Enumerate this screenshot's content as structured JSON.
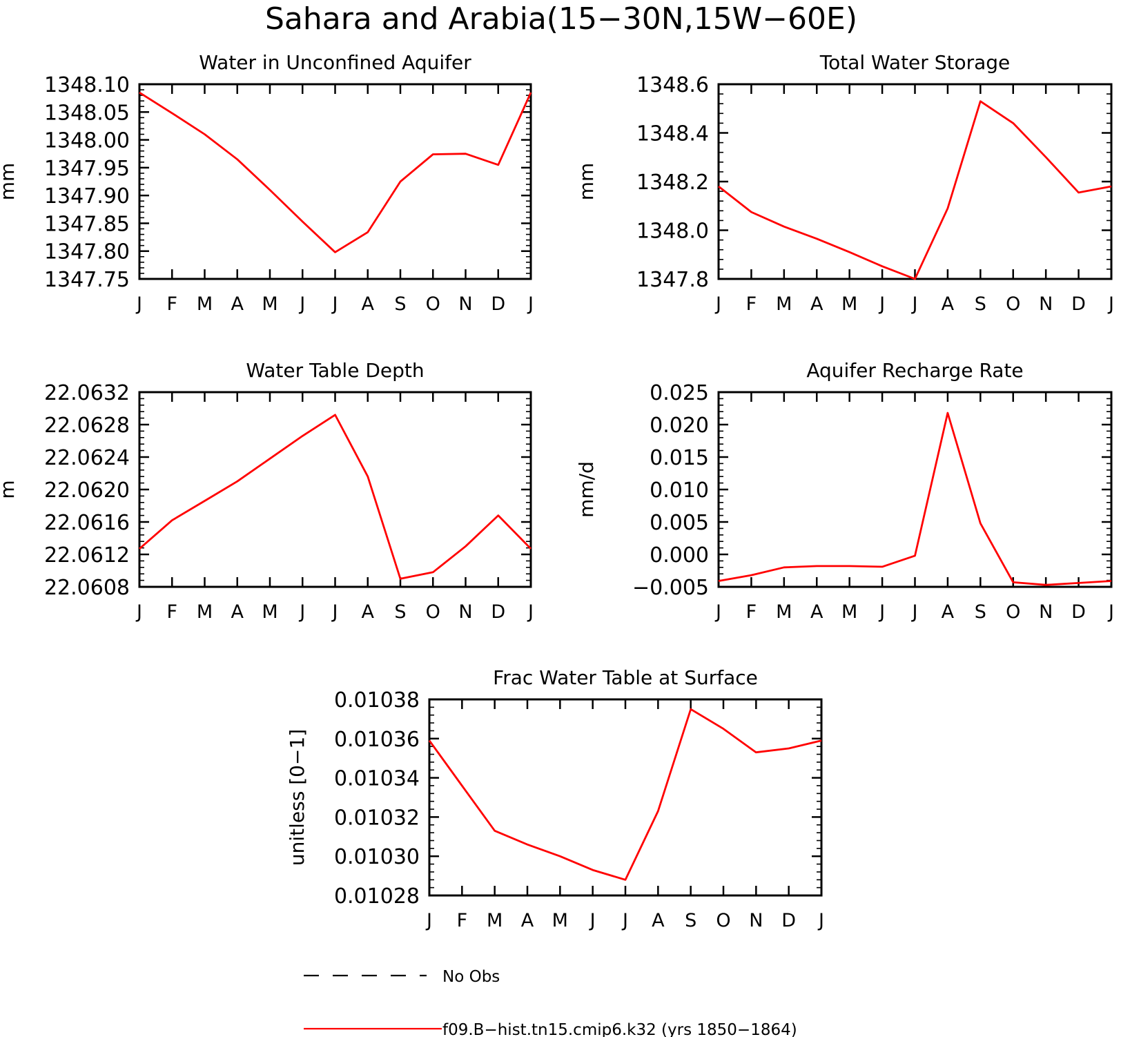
{
  "figure_title": "Sahara and Arabia(15−30N,15W−60E)",
  "legend": {
    "placement": "bottom-center",
    "entries": [
      {
        "label": "No Obs",
        "style": "dashed",
        "color": "#000000"
      },
      {
        "label": "f09.B−hist.tn15.cmip6.k32 (yrs 1850−1864)",
        "style": "solid",
        "color": "#ff0000"
      }
    ]
  },
  "chart_data": [
    {
      "type": "line",
      "title": "Water in Unconfined Aquifer",
      "ylabel": "mm",
      "x": [
        "J",
        "F",
        "M",
        "A",
        "M",
        "J",
        "J",
        "A",
        "S",
        "O",
        "N",
        "D",
        "J"
      ],
      "ylim": [
        1347.75,
        1348.1
      ],
      "yticks": [
        "1347.75",
        "1347.80",
        "1347.85",
        "1347.90",
        "1347.95",
        "1348.00",
        "1348.05",
        "1348.10"
      ],
      "series": [
        {
          "color": "#ff0000",
          "values": [
            1348.085,
            1348.048,
            1348.01,
            1347.965,
            1347.91,
            1347.853,
            1347.798,
            1347.834,
            1347.925,
            1347.974,
            1347.975,
            1347.955,
            1348.085
          ]
        }
      ]
    },
    {
      "type": "line",
      "title": "Total Water Storage",
      "ylabel": "mm",
      "x": [
        "J",
        "F",
        "M",
        "A",
        "M",
        "J",
        "J",
        "A",
        "S",
        "O",
        "N",
        "D",
        "J"
      ],
      "ylim": [
        1347.8,
        1348.6
      ],
      "yticks": [
        "1347.8",
        "1348.0",
        "1348.2",
        "1348.4",
        "1348.6"
      ],
      "series": [
        {
          "color": "#ff0000",
          "values": [
            1348.18,
            1348.075,
            1348.015,
            1347.965,
            1347.91,
            1347.852,
            1347.8,
            1348.09,
            1348.53,
            1348.44,
            1348.3,
            1348.155,
            1348.18
          ]
        }
      ]
    },
    {
      "type": "line",
      "title": "Water Table Depth",
      "ylabel": "m",
      "x": [
        "J",
        "F",
        "M",
        "A",
        "M",
        "J",
        "J",
        "A",
        "S",
        "O",
        "N",
        "D",
        "J"
      ],
      "ylim": [
        22.0608,
        22.0632
      ],
      "yticks": [
        "22.0608",
        "22.0612",
        "22.0616",
        "22.0620",
        "22.0624",
        "22.0628",
        "22.0632"
      ],
      "series": [
        {
          "color": "#ff0000",
          "values": [
            22.06127,
            22.06162,
            22.06186,
            22.0621,
            22.06238,
            22.06266,
            22.06292,
            22.06216,
            22.0609,
            22.06098,
            22.0613,
            22.06168,
            22.06127
          ]
        }
      ]
    },
    {
      "type": "line",
      "title": "Aquifer Recharge Rate",
      "ylabel": "mm/d",
      "x": [
        "J",
        "F",
        "M",
        "A",
        "M",
        "J",
        "J",
        "A",
        "S",
        "O",
        "N",
        "D",
        "J"
      ],
      "ylim": [
        -0.005,
        0.025
      ],
      "yticks": [
        "−0.005",
        "0.000",
        "0.005",
        "0.010",
        "0.015",
        "0.020",
        "0.025"
      ],
      "series": [
        {
          "color": "#ff0000",
          "values": [
            -0.0041,
            -0.0032,
            -0.002,
            -0.0018,
            -0.0018,
            -0.0019,
            -0.0002,
            0.0218,
            0.0048,
            -0.0043,
            -0.0047,
            -0.0044,
            -0.0041
          ]
        }
      ]
    },
    {
      "type": "line",
      "title": "Frac Water Table at Surface",
      "ylabel": "unitless [0−1]",
      "x": [
        "J",
        "F",
        "M",
        "A",
        "M",
        "J",
        "J",
        "A",
        "S",
        "O",
        "N",
        "D",
        "J"
      ],
      "ylim": [
        0.01028,
        0.01038
      ],
      "yticks": [
        "0.01028",
        "0.01030",
        "0.01032",
        "0.01034",
        "0.01036",
        "0.01038"
      ],
      "series": [
        {
          "color": "#ff0000",
          "values": [
            0.010359,
            0.010336,
            0.010313,
            0.010306,
            0.0103,
            0.010293,
            0.010288,
            0.010323,
            0.010375,
            0.010365,
            0.010353,
            0.010355,
            0.010359
          ]
        }
      ]
    }
  ]
}
